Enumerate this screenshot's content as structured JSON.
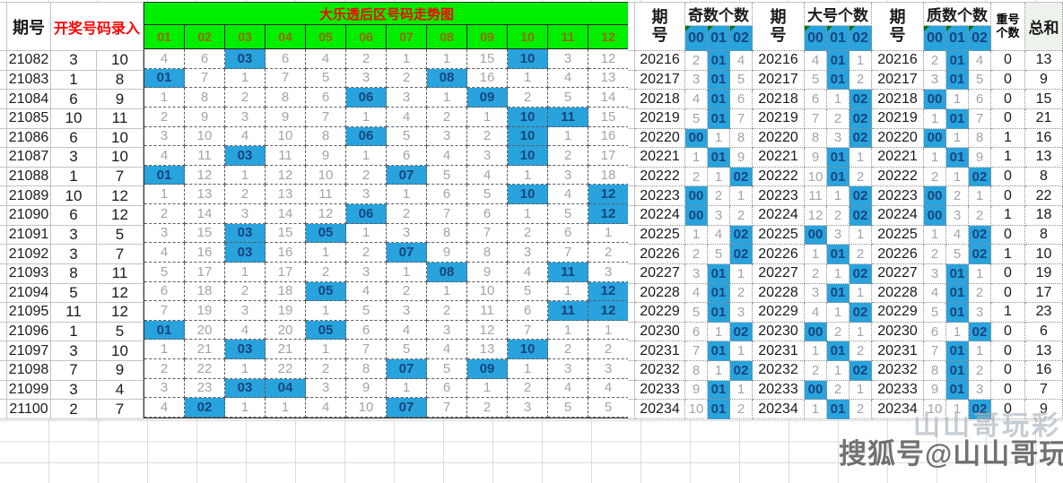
{
  "left": {
    "period_header": "期号",
    "entry_header": "开奖号码录入"
  },
  "trend": {
    "title": "大乐透后区号码走势图",
    "columns": [
      "01",
      "02",
      "03",
      "04",
      "05",
      "06",
      "07",
      "08",
      "09",
      "10",
      "11",
      "12"
    ],
    "rows": [
      {
        "period": "21082",
        "nums": [
          "3",
          "10"
        ],
        "cells": [
          "4",
          "6",
          "03",
          "6",
          "4",
          "2",
          "1",
          "1",
          "15",
          "10",
          "3",
          "12"
        ],
        "hl": [
          2,
          9
        ]
      },
      {
        "period": "21083",
        "nums": [
          "1",
          "8"
        ],
        "cells": [
          "01",
          "7",
          "1",
          "7",
          "5",
          "3",
          "2",
          "08",
          "16",
          "1",
          "4",
          "13"
        ],
        "hl": [
          0,
          7
        ]
      },
      {
        "period": "21084",
        "nums": [
          "6",
          "9"
        ],
        "cells": [
          "1",
          "8",
          "2",
          "8",
          "6",
          "06",
          "3",
          "1",
          "09",
          "2",
          "5",
          "14"
        ],
        "hl": [
          5,
          8
        ]
      },
      {
        "period": "21085",
        "nums": [
          "10",
          "11"
        ],
        "cells": [
          "2",
          "9",
          "3",
          "9",
          "7",
          "1",
          "4",
          "2",
          "1",
          "10",
          "11",
          "15"
        ],
        "hl": [
          9,
          10
        ]
      },
      {
        "period": "21086",
        "nums": [
          "6",
          "10"
        ],
        "cells": [
          "3",
          "10",
          "4",
          "10",
          "8",
          "06",
          "5",
          "3",
          "2",
          "10",
          "1",
          "16"
        ],
        "hl": [
          5,
          9
        ]
      },
      {
        "period": "21087",
        "nums": [
          "3",
          "10"
        ],
        "cells": [
          "4",
          "11",
          "03",
          "11",
          "9",
          "1",
          "6",
          "4",
          "3",
          "10",
          "2",
          "17"
        ],
        "hl": [
          2,
          9
        ]
      },
      {
        "period": "21088",
        "nums": [
          "1",
          "7"
        ],
        "cells": [
          "01",
          "12",
          "1",
          "12",
          "10",
          "2",
          "07",
          "5",
          "4",
          "1",
          "3",
          "18"
        ],
        "hl": [
          0,
          6
        ]
      },
      {
        "period": "21089",
        "nums": [
          "10",
          "12"
        ],
        "cells": [
          "1",
          "13",
          "2",
          "13",
          "11",
          "3",
          "1",
          "6",
          "5",
          "10",
          "4",
          "12"
        ],
        "hl": [
          9,
          11
        ]
      },
      {
        "period": "21090",
        "nums": [
          "6",
          "12"
        ],
        "cells": [
          "2",
          "14",
          "3",
          "14",
          "12",
          "06",
          "2",
          "7",
          "6",
          "1",
          "5",
          "12"
        ],
        "hl": [
          5,
          11
        ]
      },
      {
        "period": "21091",
        "nums": [
          "3",
          "5"
        ],
        "cells": [
          "3",
          "15",
          "03",
          "15",
          "05",
          "1",
          "3",
          "8",
          "7",
          "2",
          "6",
          "1"
        ],
        "hl": [
          2,
          4
        ]
      },
      {
        "period": "21092",
        "nums": [
          "3",
          "7"
        ],
        "cells": [
          "4",
          "16",
          "03",
          "16",
          "1",
          "2",
          "07",
          "9",
          "8",
          "3",
          "7",
          "2"
        ],
        "hl": [
          2,
          6
        ]
      },
      {
        "period": "21093",
        "nums": [
          "8",
          "11"
        ],
        "cells": [
          "5",
          "17",
          "1",
          "17",
          "2",
          "3",
          "1",
          "08",
          "9",
          "4",
          "11",
          "3"
        ],
        "hl": [
          7,
          10
        ]
      },
      {
        "period": "21094",
        "nums": [
          "5",
          "12"
        ],
        "cells": [
          "6",
          "18",
          "2",
          "18",
          "05",
          "4",
          "2",
          "1",
          "10",
          "5",
          "1",
          "12"
        ],
        "hl": [
          4,
          11
        ]
      },
      {
        "period": "21095",
        "nums": [
          "11",
          "12"
        ],
        "cells": [
          "7",
          "19",
          "3",
          "19",
          "1",
          "5",
          "3",
          "2",
          "11",
          "6",
          "11",
          "12"
        ],
        "hl": [
          10,
          11
        ]
      },
      {
        "period": "21096",
        "nums": [
          "1",
          "5"
        ],
        "cells": [
          "01",
          "20",
          "4",
          "20",
          "05",
          "6",
          "4",
          "3",
          "12",
          "7",
          "1",
          "1"
        ],
        "hl": [
          0,
          4
        ]
      },
      {
        "period": "21097",
        "nums": [
          "3",
          "10"
        ],
        "cells": [
          "1",
          "21",
          "03",
          "21",
          "1",
          "7",
          "5",
          "4",
          "13",
          "10",
          "2",
          "2"
        ],
        "hl": [
          2,
          9
        ]
      },
      {
        "period": "21098",
        "nums": [
          "7",
          "9"
        ],
        "cells": [
          "2",
          "22",
          "1",
          "22",
          "2",
          "8",
          "07",
          "5",
          "09",
          "1",
          "3",
          "3"
        ],
        "hl": [
          6,
          8
        ]
      },
      {
        "period": "21099",
        "nums": [
          "3",
          "4"
        ],
        "cells": [
          "3",
          "23",
          "03",
          "04",
          "3",
          "9",
          "1",
          "6",
          "1",
          "2",
          "4",
          "4"
        ],
        "hl": [
          2,
          3
        ]
      },
      {
        "period": "21100",
        "nums": [
          "2",
          "7"
        ],
        "cells": [
          "4",
          "02",
          "1",
          "1",
          "4",
          "10",
          "07",
          "7",
          "2",
          "3",
          "5",
          "5"
        ],
        "hl": [
          1,
          6
        ]
      }
    ]
  },
  "stats": {
    "period_header": "期号",
    "groups": [
      "奇数个数",
      "大号个数",
      "质数个数"
    ],
    "subcols": [
      "00",
      "01",
      "02"
    ],
    "repeat_header": "重号个数",
    "sum_header": "总和",
    "rows": [
      {
        "period": "20216",
        "odd": [
          "2",
          "01",
          "4"
        ],
        "big": [
          "4",
          "01",
          "1"
        ],
        "prime": [
          "2",
          "01",
          "4"
        ],
        "repeat": "0",
        "sum": "13"
      },
      {
        "period": "20217",
        "odd": [
          "3",
          "01",
          "5"
        ],
        "big": [
          "5",
          "01",
          "2"
        ],
        "prime": [
          "3",
          "01",
          "5"
        ],
        "repeat": "0",
        "sum": "9"
      },
      {
        "period": "20218",
        "odd": [
          "4",
          "01",
          "6"
        ],
        "big": [
          "6",
          "1",
          "02"
        ],
        "prime": [
          "00",
          "1",
          "6"
        ],
        "repeat": "0",
        "sum": "15"
      },
      {
        "period": "20219",
        "odd": [
          "5",
          "01",
          "7"
        ],
        "big": [
          "7",
          "2",
          "02"
        ],
        "prime": [
          "1",
          "01",
          "7"
        ],
        "repeat": "0",
        "sum": "21"
      },
      {
        "period": "20220",
        "odd": [
          "00",
          "1",
          "8"
        ],
        "big": [
          "8",
          "3",
          "02"
        ],
        "prime": [
          "00",
          "1",
          "8"
        ],
        "repeat": "1",
        "sum": "16"
      },
      {
        "period": "20221",
        "odd": [
          "1",
          "01",
          "9"
        ],
        "big": [
          "9",
          "01",
          "1"
        ],
        "prime": [
          "1",
          "01",
          "9"
        ],
        "repeat": "1",
        "sum": "13"
      },
      {
        "period": "20222",
        "odd": [
          "2",
          "1",
          "02"
        ],
        "big": [
          "10",
          "01",
          "2"
        ],
        "prime": [
          "2",
          "1",
          "02"
        ],
        "repeat": "0",
        "sum": "8"
      },
      {
        "period": "20223",
        "odd": [
          "00",
          "2",
          "1"
        ],
        "big": [
          "11",
          "1",
          "02"
        ],
        "prime": [
          "00",
          "2",
          "1"
        ],
        "repeat": "0",
        "sum": "22"
      },
      {
        "period": "20224",
        "odd": [
          "00",
          "3",
          "2"
        ],
        "big": [
          "12",
          "2",
          "02"
        ],
        "prime": [
          "00",
          "3",
          "2"
        ],
        "repeat": "1",
        "sum": "18"
      },
      {
        "period": "20225",
        "odd": [
          "1",
          "4",
          "02"
        ],
        "big": [
          "00",
          "3",
          "1"
        ],
        "prime": [
          "1",
          "4",
          "02"
        ],
        "repeat": "0",
        "sum": "8"
      },
      {
        "period": "20226",
        "odd": [
          "2",
          "5",
          "02"
        ],
        "big": [
          "1",
          "01",
          "2"
        ],
        "prime": [
          "2",
          "5",
          "02"
        ],
        "repeat": "1",
        "sum": "10"
      },
      {
        "period": "20227",
        "odd": [
          "3",
          "01",
          "1"
        ],
        "big": [
          "2",
          "1",
          "02"
        ],
        "prime": [
          "3",
          "01",
          "1"
        ],
        "repeat": "0",
        "sum": "19"
      },
      {
        "period": "20228",
        "odd": [
          "4",
          "01",
          "2"
        ],
        "big": [
          "3",
          "01",
          "1"
        ],
        "prime": [
          "4",
          "01",
          "2"
        ],
        "repeat": "0",
        "sum": "17"
      },
      {
        "period": "20229",
        "odd": [
          "5",
          "01",
          "3"
        ],
        "big": [
          "4",
          "1",
          "02"
        ],
        "prime": [
          "5",
          "01",
          "3"
        ],
        "repeat": "1",
        "sum": "23"
      },
      {
        "period": "20230",
        "odd": [
          "6",
          "1",
          "02"
        ],
        "big": [
          "00",
          "2",
          "1"
        ],
        "prime": [
          "6",
          "1",
          "02"
        ],
        "repeat": "0",
        "sum": "6"
      },
      {
        "period": "20231",
        "odd": [
          "7",
          "01",
          "1"
        ],
        "big": [
          "1",
          "01",
          "2"
        ],
        "prime": [
          "7",
          "01",
          "1"
        ],
        "repeat": "0",
        "sum": "13"
      },
      {
        "period": "20232",
        "odd": [
          "8",
          "1",
          "02"
        ],
        "big": [
          "2",
          "1",
          "02"
        ],
        "prime": [
          "8",
          "01",
          "2"
        ],
        "repeat": "0",
        "sum": "16"
      },
      {
        "period": "20233",
        "odd": [
          "9",
          "01",
          "1"
        ],
        "big": [
          "00",
          "2",
          "1"
        ],
        "prime": [
          "9",
          "01",
          "3"
        ],
        "repeat": "0",
        "sum": "7"
      },
      {
        "period": "20234",
        "odd": [
          "10",
          "01",
          "2"
        ],
        "big": [
          "1",
          "01",
          "2"
        ],
        "prime": [
          "10",
          "1",
          "02"
        ],
        "repeat": "0",
        "sum": "9"
      }
    ]
  },
  "watermark": {
    "front": "搜狐号@山山哥玩彩",
    "back": "山山哥玩彩"
  },
  "colors": {
    "header_green": "#00ee00",
    "title_red": "#ff0000",
    "column_gold": "#9c6500",
    "highlight_blue": "#29a3dd",
    "highlight_text": "#17457c",
    "muted_gray": "#a4a4a4"
  }
}
